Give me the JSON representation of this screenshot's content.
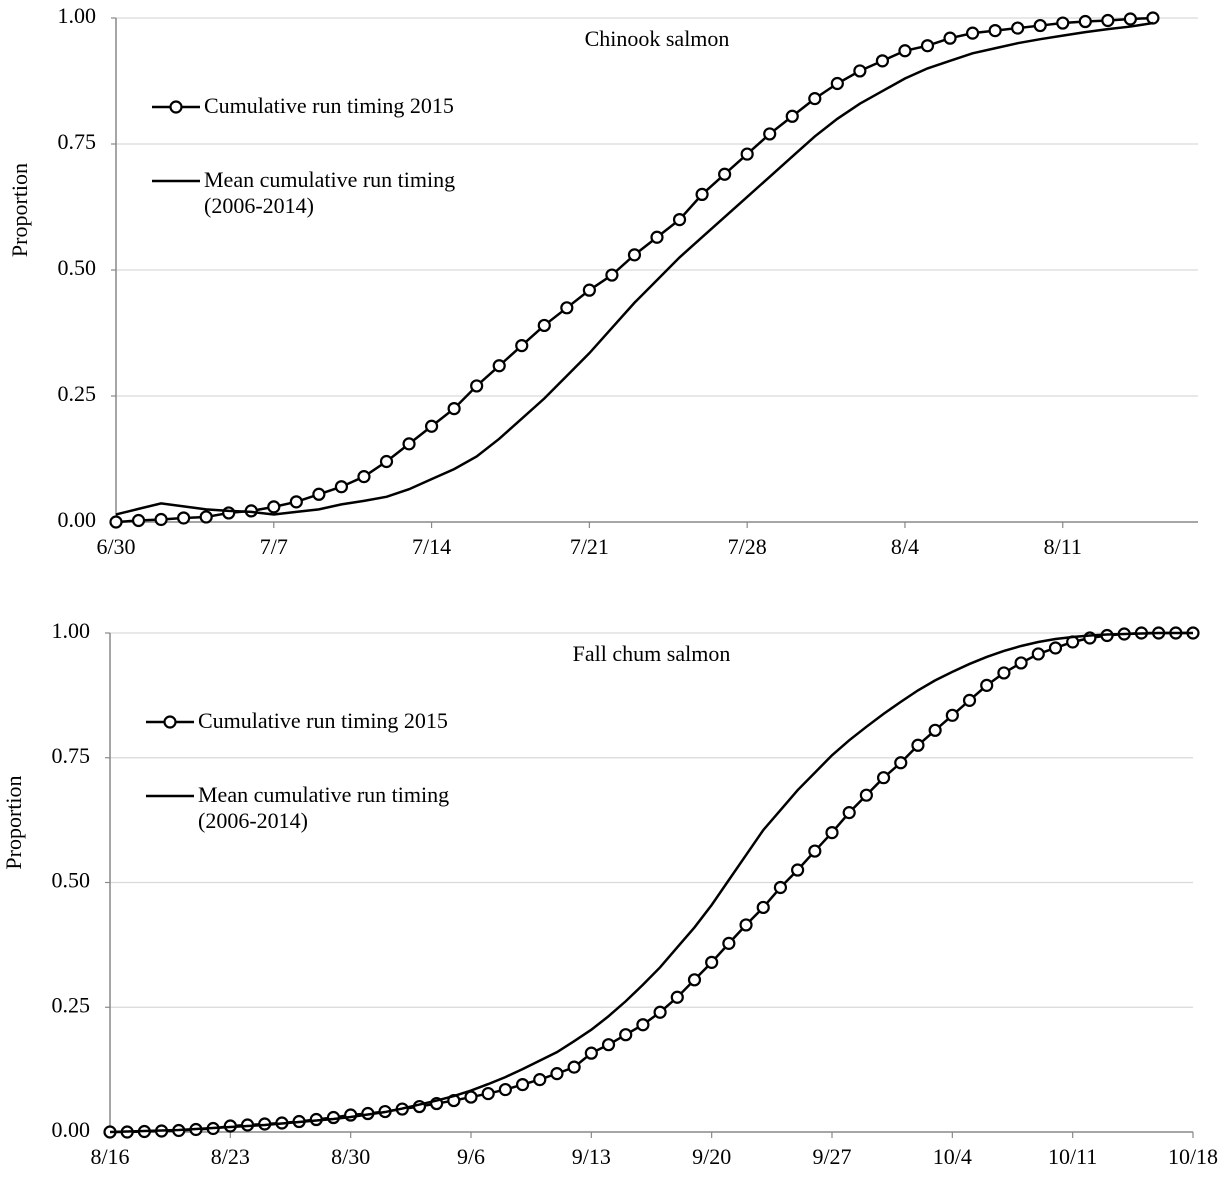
{
  "chart_data": [
    {
      "type": "line",
      "title": "Chinook salmon",
      "y_label": "Proportion",
      "x": [
        0,
        1,
        2,
        3,
        4,
        5,
        6,
        7,
        8,
        9,
        10,
        11,
        12,
        13,
        14,
        15,
        16,
        17,
        18,
        19,
        20,
        21,
        22,
        23,
        24,
        25,
        26,
        27,
        28,
        29,
        30,
        31,
        32,
        33,
        34,
        35,
        36,
        37,
        38,
        39,
        40,
        41,
        42,
        43,
        44,
        45,
        46
      ],
      "xlim": [
        0,
        48
      ],
      "xticks": [
        {
          "value": 0,
          "label": "6/30"
        },
        {
          "value": 7,
          "label": "7/7"
        },
        {
          "value": 14,
          "label": "7/14"
        },
        {
          "value": 21,
          "label": "7/21"
        },
        {
          "value": 28,
          "label": "7/28"
        },
        {
          "value": 35,
          "label": "8/4"
        },
        {
          "value": 42,
          "label": "8/11"
        }
      ],
      "ylim": [
        0,
        1
      ],
      "yticks": [
        {
          "value": 0,
          "label": "0.00"
        },
        {
          "value": 0.25,
          "label": "0.25"
        },
        {
          "value": 0.5,
          "label": "0.50"
        },
        {
          "value": 0.75,
          "label": "0.75"
        },
        {
          "value": 1,
          "label": "1.00"
        }
      ],
      "grid": true,
      "series": [
        {
          "name": "Cumulative run timing 2015",
          "color": "#000000",
          "marker": "circle",
          "values": [
            0,
            0.003,
            0.005,
            0.008,
            0.01,
            0.018,
            0.022,
            0.03,
            0.04,
            0.055,
            0.07,
            0.09,
            0.12,
            0.155,
            0.19,
            0.225,
            0.27,
            0.31,
            0.35,
            0.39,
            0.425,
            0.46,
            0.49,
            0.53,
            0.565,
            0.6,
            0.65,
            0.69,
            0.73,
            0.77,
            0.805,
            0.84,
            0.87,
            0.895,
            0.915,
            0.935,
            0.945,
            0.96,
            0.97,
            0.975,
            0.98,
            0.985,
            0.99,
            0.993,
            0.995,
            0.998,
            1.0
          ]
        },
        {
          "name": "Mean cumulative run timing (2006-2014)",
          "color": "#000000",
          "marker": "none",
          "values": [
            0.015,
            0.026,
            0.037,
            0.031,
            0.025,
            0.022,
            0.02,
            0.015,
            0.02,
            0.025,
            0.035,
            0.042,
            0.05,
            0.065,
            0.085,
            0.105,
            0.13,
            0.165,
            0.205,
            0.245,
            0.29,
            0.335,
            0.385,
            0.435,
            0.48,
            0.525,
            0.565,
            0.605,
            0.645,
            0.685,
            0.725,
            0.765,
            0.8,
            0.83,
            0.855,
            0.88,
            0.9,
            0.915,
            0.93,
            0.94,
            0.95,
            0.958,
            0.965,
            0.972,
            0.978,
            0.983,
            0.99
          ]
        }
      ]
    },
    {
      "type": "line",
      "title": "Fall chum salmon",
      "y_label": "Proportion",
      "x": [
        0,
        1,
        2,
        3,
        4,
        5,
        6,
        7,
        8,
        9,
        10,
        11,
        12,
        13,
        14,
        15,
        16,
        17,
        18,
        19,
        20,
        21,
        22,
        23,
        24,
        25,
        26,
        27,
        28,
        29,
        30,
        31,
        32,
        33,
        34,
        35,
        36,
        37,
        38,
        39,
        40,
        41,
        42,
        43,
        44,
        45,
        46,
        47,
        48,
        49,
        50,
        51,
        52,
        53,
        54,
        55,
        56,
        57,
        58,
        59,
        60,
        61,
        62,
        63
      ],
      "xlim": [
        0,
        63
      ],
      "xticks": [
        {
          "value": 0,
          "label": "8/16"
        },
        {
          "value": 7,
          "label": "8/23"
        },
        {
          "value": 14,
          "label": "8/30"
        },
        {
          "value": 21,
          "label": "9/6"
        },
        {
          "value": 28,
          "label": "9/13"
        },
        {
          "value": 35,
          "label": "9/20"
        },
        {
          "value": 42,
          "label": "9/27"
        },
        {
          "value": 49,
          "label": "10/4"
        },
        {
          "value": 56,
          "label": "10/11"
        },
        {
          "value": 63,
          "label": "10/18"
        }
      ],
      "ylim": [
        0,
        1
      ],
      "yticks": [
        {
          "value": 0,
          "label": "0.00"
        },
        {
          "value": 0.25,
          "label": "0.25"
        },
        {
          "value": 0.5,
          "label": "0.50"
        },
        {
          "value": 0.75,
          "label": "0.75"
        },
        {
          "value": 1,
          "label": "1.00"
        }
      ],
      "grid": true,
      "series": [
        {
          "name": "Cumulative run timing 2015",
          "color": "#000000",
          "marker": "circle",
          "values": [
            0,
            0,
            0.001,
            0.002,
            0.003,
            0.005,
            0.007,
            0.012,
            0.014,
            0.016,
            0.018,
            0.021,
            0.025,
            0.029,
            0.034,
            0.037,
            0.041,
            0.046,
            0.051,
            0.057,
            0.063,
            0.07,
            0.077,
            0.085,
            0.095,
            0.105,
            0.117,
            0.13,
            0.158,
            0.175,
            0.195,
            0.215,
            0.24,
            0.27,
            0.305,
            0.34,
            0.378,
            0.415,
            0.45,
            0.49,
            0.525,
            0.563,
            0.6,
            0.64,
            0.675,
            0.71,
            0.74,
            0.775,
            0.805,
            0.835,
            0.865,
            0.895,
            0.92,
            0.94,
            0.958,
            0.97,
            0.982,
            0.99,
            0.995,
            0.998,
            1,
            1,
            1,
            1
          ]
        },
        {
          "name": "Mean cumulative run timing (2006-2014)",
          "color": "#000000",
          "marker": "none",
          "values": [
            0,
            0.001,
            0.002,
            0.003,
            0.004,
            0.006,
            0.008,
            0.01,
            0.012,
            0.014,
            0.017,
            0.02,
            0.023,
            0.026,
            0.03,
            0.035,
            0.04,
            0.047,
            0.055,
            0.063,
            0.072,
            0.083,
            0.096,
            0.11,
            0.126,
            0.143,
            0.16,
            0.182,
            0.205,
            0.232,
            0.262,
            0.295,
            0.33,
            0.37,
            0.41,
            0.455,
            0.505,
            0.555,
            0.605,
            0.645,
            0.685,
            0.72,
            0.755,
            0.785,
            0.812,
            0.838,
            0.862,
            0.885,
            0.905,
            0.922,
            0.938,
            0.952,
            0.964,
            0.974,
            0.982,
            0.988,
            0.992,
            0.995,
            0.997,
            0.998,
            0.999,
            1,
            1,
            1
          ]
        }
      ]
    }
  ]
}
